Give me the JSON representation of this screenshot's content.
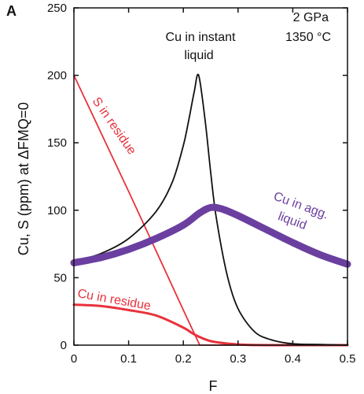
{
  "chart_data": {
    "type": "line",
    "panel_label": "A",
    "xlabel": "F",
    "ylabel": "Cu, S (ppm) at ΔFMQ=0",
    "xlim": [
      0,
      0.5
    ],
    "ylim": [
      0,
      250
    ],
    "x_ticks": [
      "0",
      "0.1",
      "0.2",
      "0.3",
      "0.4",
      "0.5"
    ],
    "y_ticks": [
      "0",
      "50",
      "100",
      "150",
      "200",
      "250"
    ],
    "conditions": [
      "2 GPa",
      "1350 °C"
    ],
    "colors": {
      "black": "#111111",
      "red": "#e8323c",
      "purple": "#6b3fa0"
    },
    "series": [
      {
        "name": "Cu in instant liquid",
        "label_lines": [
          "Cu in instant",
          "liquid"
        ],
        "color": "#111111",
        "x": [
          0,
          0.05,
          0.1,
          0.15,
          0.18,
          0.2,
          0.21,
          0.22,
          0.228,
          0.24,
          0.25,
          0.26,
          0.28,
          0.3,
          0.33,
          0.36,
          0.4,
          0.45,
          0.5
        ],
        "y": [
          62,
          68,
          79,
          99,
          121,
          148,
          167,
          188,
          200,
          166,
          128,
          95,
          52,
          27,
          10,
          4,
          1,
          0.5,
          0
        ]
      },
      {
        "name": "Cu in agg. liquid",
        "label_lines": [
          "Cu in agg.",
          "liquid"
        ],
        "color": "#6b3fa0",
        "x": [
          0,
          0.05,
          0.1,
          0.15,
          0.2,
          0.23,
          0.25,
          0.27,
          0.3,
          0.35,
          0.4,
          0.45,
          0.5
        ],
        "y": [
          61,
          65,
          71,
          79,
          89,
          98,
          102,
          101,
          96,
          86,
          76,
          67,
          60
        ]
      },
      {
        "name": "S in residue",
        "label_lines": [
          "S in residue"
        ],
        "color": "#e8323c",
        "x": [
          0,
          0.05,
          0.1,
          0.15,
          0.2,
          0.23,
          0.5
        ],
        "y": [
          200,
          157,
          114,
          70,
          26,
          0,
          0
        ]
      },
      {
        "name": "Cu in residue",
        "label_lines": [
          "Cu in residue"
        ],
        "color": "#e8323c",
        "x": [
          0,
          0.05,
          0.1,
          0.15,
          0.2,
          0.22,
          0.25,
          0.3,
          0.35,
          0.4,
          0.5
        ],
        "y": [
          30,
          29,
          26,
          22,
          13,
          8,
          3,
          0.5,
          0,
          0,
          0
        ]
      }
    ]
  }
}
